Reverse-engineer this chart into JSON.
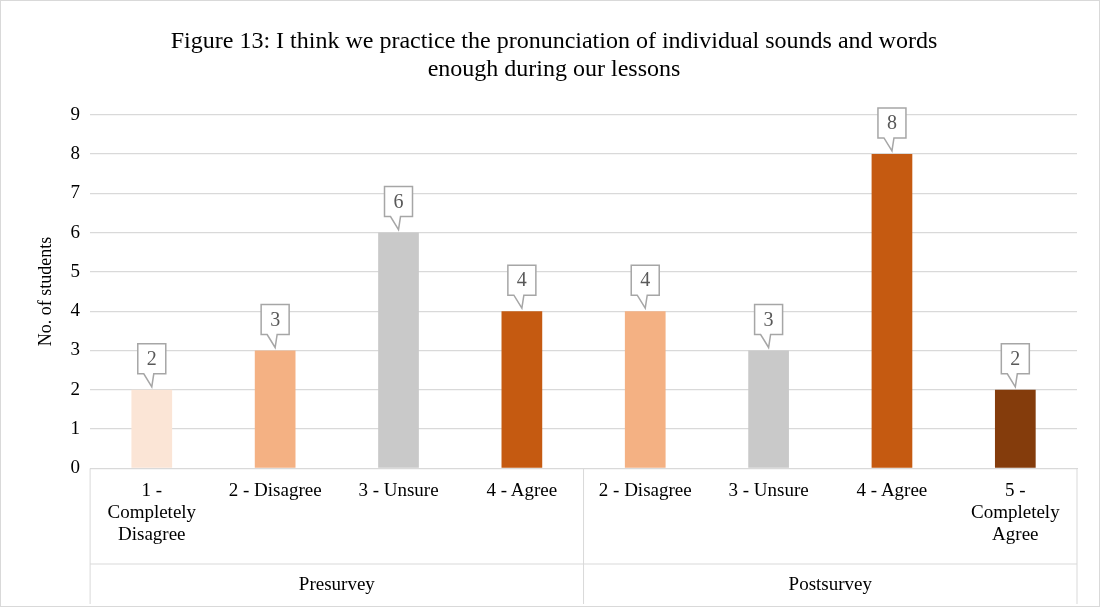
{
  "chart_data": {
    "type": "bar",
    "title": "Figure 13: I think we practice the pronunciation of individual sounds and words enough during our lessons",
    "ylabel": "No. of students",
    "categories": [
      "1 - Completely Disagree",
      "2 - Disagree",
      "3 - Unsure",
      "4 - Agree",
      "2 - Disagree",
      "3 - Unsure",
      "4 - Agree",
      "5 - Completely Agree"
    ],
    "values": [
      2,
      3,
      6,
      4,
      4,
      3,
      8,
      2
    ],
    "colors": [
      "#fbe5d6",
      "#f4b183",
      "#c9c9c9",
      "#c55a11",
      "#f4b183",
      "#c9c9c9",
      "#c55a11",
      "#843c0c"
    ],
    "ylim": [
      0,
      9
    ],
    "yticks": [
      0,
      1,
      2,
      3,
      4,
      5,
      6,
      7,
      8,
      9
    ],
    "grid": "y",
    "legend": false,
    "data_labels": true,
    "annotations": [
      "Presurvey",
      "Postsurvey"
    ]
  }
}
